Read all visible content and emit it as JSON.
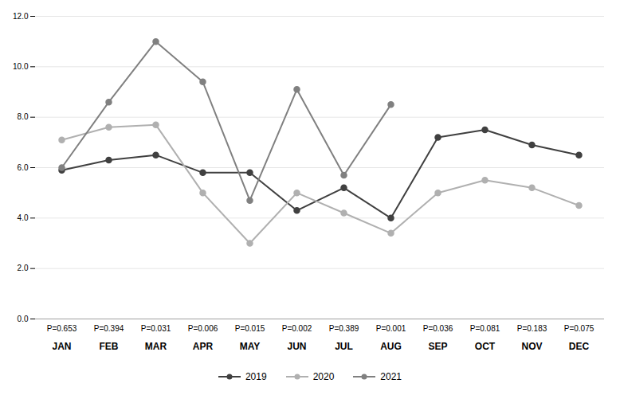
{
  "chart_data": {
    "type": "line",
    "categories": [
      "JAN",
      "FEB",
      "MAR",
      "APR",
      "MAY",
      "JUN",
      "JUL",
      "AUG",
      "SEP",
      "OCT",
      "NOV",
      "DEC"
    ],
    "series": [
      {
        "name": "2019",
        "color": "#404040",
        "marker": "circle",
        "values": [
          5.9,
          6.3,
          6.5,
          5.8,
          5.8,
          4.3,
          5.2,
          4.0,
          7.2,
          7.5,
          6.9,
          6.5
        ]
      },
      {
        "name": "2020",
        "color": "#b0b0b0",
        "marker": "circle",
        "values": [
          7.1,
          7.6,
          7.7,
          5.0,
          3.0,
          5.0,
          4.2,
          3.4,
          5.0,
          5.5,
          5.2,
          4.5
        ]
      },
      {
        "name": "2021",
        "color": "#808080",
        "marker": "circle",
        "values": [
          6.0,
          8.6,
          11.0,
          9.4,
          4.7,
          9.1,
          5.7,
          8.5,
          null,
          null,
          null,
          null
        ]
      }
    ],
    "annotations": [
      {
        "x": "JAN",
        "text": "P=0.653"
      },
      {
        "x": "FEB",
        "text": "P=0.394"
      },
      {
        "x": "MAR",
        "text": "P=0.031"
      },
      {
        "x": "APR",
        "text": "P=0.006"
      },
      {
        "x": "MAY",
        "text": "P=0.015"
      },
      {
        "x": "JUN",
        "text": "P=0.002"
      },
      {
        "x": "JUL",
        "text": "P=0.389"
      },
      {
        "x": "AUG",
        "text": "P=0.001"
      },
      {
        "x": "SEP",
        "text": "P=0.036"
      },
      {
        "x": "OCT",
        "text": "P=0.081"
      },
      {
        "x": "NOV",
        "text": "P=0.183"
      },
      {
        "x": "DEC",
        "text": "P=0.075"
      }
    ],
    "ylim": [
      0.0,
      12.0
    ],
    "yticks": [
      {
        "value": 0,
        "label": "0.0"
      },
      {
        "value": 2,
        "label": "2.0"
      },
      {
        "value": 4,
        "label": "4.0"
      },
      {
        "value": 6,
        "label": "6.0"
      },
      {
        "value": 8,
        "label": "8.0"
      },
      {
        "value": 10,
        "label": "10.0"
      },
      {
        "value": 12,
        "label": "12.0"
      }
    ],
    "grid": true,
    "legend": "bottom"
  }
}
